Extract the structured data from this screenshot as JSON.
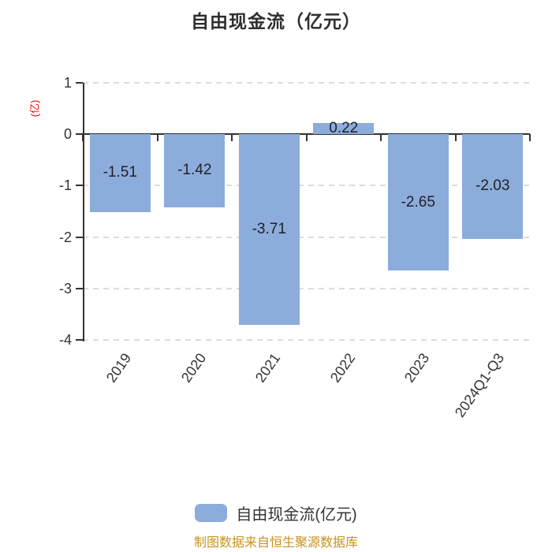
{
  "title": "自由现金流（亿元）",
  "y_axis_unit": "(亿)",
  "legend": {
    "label": "自由现金流(亿元)",
    "swatch_color": "#8cacdc"
  },
  "footer": {
    "text": "制图数据来自恒生聚源数据库",
    "color": "#c8931d"
  },
  "colors": {
    "bar": "#8cacdc",
    "axis": "#333333",
    "gridline": "#dcdcdc",
    "title_text": "#2e2e2e",
    "value_label_text": "#222222",
    "y_unit_text": "#fe0000",
    "footer_text": "#c8931d",
    "background": "#ffffff"
  },
  "chart_data": {
    "type": "bar",
    "title": "自由现金流（亿元）",
    "categories": [
      "2019",
      "2020",
      "2021",
      "2022",
      "2023",
      "2024Q1-Q3"
    ],
    "series": [
      {
        "name": "自由现金流(亿元)",
        "values": [
          -1.51,
          -1.42,
          -3.71,
          0.22,
          -2.65,
          -2.03
        ]
      }
    ],
    "value_labels": [
      "-1.51",
      "-1.42",
      "-3.71",
      "0.22",
      "-2.65",
      "-2.03"
    ],
    "xlabel": "",
    "ylabel": "(亿)",
    "ylim": [
      -4,
      1
    ],
    "yticks": [
      1,
      0,
      -1,
      -2,
      -3,
      -4
    ],
    "ytick_labels": [
      "1",
      "0",
      "-1",
      "-2",
      "-3",
      "-4"
    ],
    "grid": "horizontal-dashed",
    "legend_position": "bottom",
    "x_label_rotation_deg": -55
  }
}
